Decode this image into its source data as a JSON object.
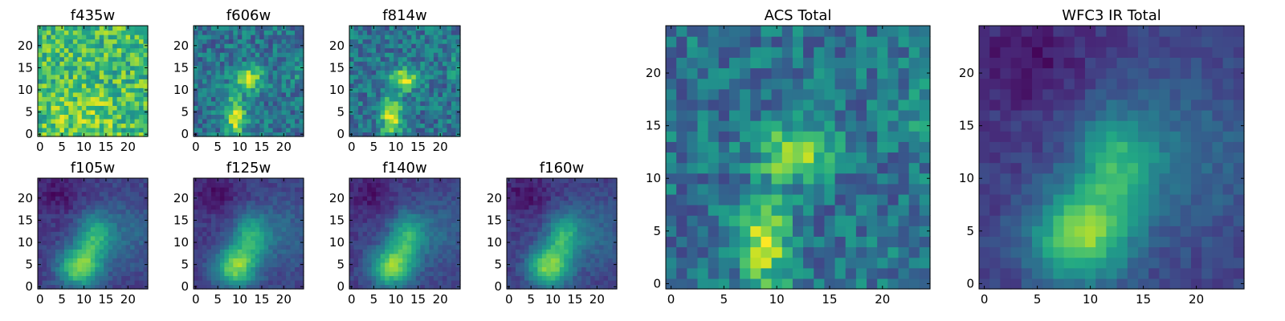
{
  "chart_data": [
    {
      "type": "heatmap",
      "title": "f435w",
      "pattern": "noise",
      "xticks": [
        "0",
        "5",
        "10",
        "15",
        "20"
      ],
      "yticks": [
        "0",
        "5",
        "10",
        "15",
        "20"
      ]
    },
    {
      "type": "heatmap",
      "title": "f606w",
      "pattern": "acs",
      "xticks": [
        "0",
        "5",
        "10",
        "15",
        "20"
      ],
      "yticks": [
        "0",
        "5",
        "10",
        "15",
        "20"
      ]
    },
    {
      "type": "heatmap",
      "title": "f814w",
      "pattern": "acs",
      "xticks": [
        "0",
        "5",
        "10",
        "15",
        "20"
      ],
      "yticks": [
        "0",
        "5",
        "10",
        "15",
        "20"
      ]
    },
    {
      "type": "heatmap",
      "title": "f105w",
      "pattern": "ir",
      "xticks": [
        "0",
        "5",
        "10",
        "15",
        "20"
      ],
      "yticks": [
        "0",
        "5",
        "10",
        "15",
        "20"
      ]
    },
    {
      "type": "heatmap",
      "title": "f125w",
      "pattern": "ir",
      "xticks": [
        "0",
        "5",
        "10",
        "15",
        "20"
      ],
      "yticks": [
        "0",
        "5",
        "10",
        "15",
        "20"
      ]
    },
    {
      "type": "heatmap",
      "title": "f140w",
      "pattern": "ir",
      "xticks": [
        "0",
        "5",
        "10",
        "15",
        "20"
      ],
      "yticks": [
        "0",
        "5",
        "10",
        "15",
        "20"
      ]
    },
    {
      "type": "heatmap",
      "title": "f160w",
      "pattern": "ir",
      "xticks": [
        "0",
        "5",
        "10",
        "15",
        "20"
      ],
      "yticks": [
        "0",
        "5",
        "10",
        "15",
        "20"
      ]
    },
    {
      "type": "heatmap",
      "title": "ACS Total",
      "pattern": "acs",
      "xticks": [
        "0",
        "5",
        "10",
        "15",
        "20"
      ],
      "yticks": [
        "0",
        "5",
        "10",
        "15",
        "20"
      ]
    },
    {
      "type": "heatmap",
      "title": "WFC3 IR Total",
      "pattern": "ir",
      "xticks": [
        "0",
        "5",
        "10",
        "15",
        "20"
      ],
      "yticks": [
        "0",
        "5",
        "10",
        "15",
        "20"
      ]
    }
  ],
  "grid_size": 25,
  "colormap": "viridis"
}
